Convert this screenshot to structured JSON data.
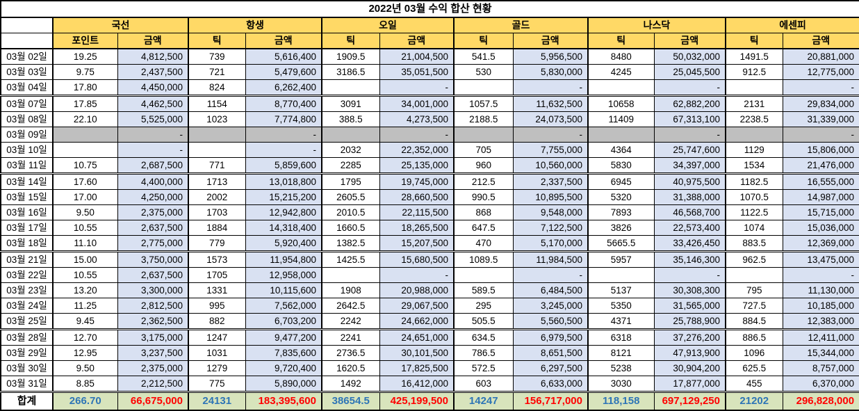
{
  "title": "2022년 03월 수익 합산 현황",
  "columns": {
    "groups": [
      {
        "name": "국선",
        "sub": [
          "포인트",
          "금액"
        ]
      },
      {
        "name": "항생",
        "sub": [
          "틱",
          "금액"
        ]
      },
      {
        "name": "오일",
        "sub": [
          "틱",
          "금액"
        ]
      },
      {
        "name": "골드",
        "sub": [
          "틱",
          "금액"
        ]
      },
      {
        "name": "나스닥",
        "sub": [
          "틱",
          "금액"
        ]
      },
      {
        "name": "에센피",
        "sub": [
          "틱",
          "금액"
        ]
      }
    ]
  },
  "rows": [
    {
      "date": "03월 02일",
      "week_start": false,
      "gray": false,
      "cells": [
        "19.25",
        "4,812,500",
        "739",
        "5,616,400",
        "1909.5",
        "21,004,500",
        "541.5",
        "5,956,500",
        "8480",
        "50,032,000",
        "1491.5",
        "20,881,000"
      ]
    },
    {
      "date": "03월 03일",
      "week_start": false,
      "gray": false,
      "cells": [
        "9.75",
        "2,437,500",
        "721",
        "5,479,600",
        "3186.5",
        "35,051,500",
        "530",
        "5,830,000",
        "4245",
        "25,045,500",
        "912.5",
        "12,775,000"
      ]
    },
    {
      "date": "03월 04일",
      "week_start": false,
      "gray": false,
      "cells": [
        "17.80",
        "4,450,000",
        "824",
        "6,262,400",
        "",
        "-",
        "",
        "-",
        "",
        "-",
        "",
        "-"
      ]
    },
    {
      "date": "03월 07일",
      "week_start": true,
      "gray": false,
      "cells": [
        "17.85",
        "4,462,500",
        "1154",
        "8,770,400",
        "3091",
        "34,001,000",
        "1057.5",
        "11,632,500",
        "10658",
        "62,882,200",
        "2131",
        "29,834,000"
      ]
    },
    {
      "date": "03월 08일",
      "week_start": false,
      "gray": false,
      "cells": [
        "22.10",
        "5,525,000",
        "1023",
        "7,774,800",
        "388.5",
        "4,273,500",
        "2188.5",
        "24,073,500",
        "11409",
        "67,313,100",
        "2238.5",
        "31,339,000"
      ]
    },
    {
      "date": "03월 09일",
      "week_start": false,
      "gray": true,
      "cells": [
        "",
        "-",
        "",
        "-",
        "",
        "-",
        "",
        "-",
        "",
        "-",
        "",
        "-"
      ]
    },
    {
      "date": "03월 10일",
      "week_start": false,
      "gray": false,
      "cells": [
        "",
        "-",
        "",
        "-",
        "2032",
        "22,352,000",
        "705",
        "7,755,000",
        "4364",
        "25,747,600",
        "1129",
        "15,806,000"
      ]
    },
    {
      "date": "03월 11일",
      "week_start": false,
      "gray": false,
      "cells": [
        "10.75",
        "2,687,500",
        "771",
        "5,859,600",
        "2285",
        "25,135,000",
        "960",
        "10,560,000",
        "5830",
        "34,397,000",
        "1534",
        "21,476,000"
      ]
    },
    {
      "date": "03월 14일",
      "week_start": true,
      "gray": false,
      "cells": [
        "17.60",
        "4,400,000",
        "1713",
        "13,018,800",
        "1795",
        "19,745,000",
        "212.5",
        "2,337,500",
        "6945",
        "40,975,500",
        "1182.5",
        "16,555,000"
      ]
    },
    {
      "date": "03월 15일",
      "week_start": false,
      "gray": false,
      "cells": [
        "17.00",
        "4,250,000",
        "2002",
        "15,215,200",
        "2605.5",
        "28,660,500",
        "990.5",
        "10,895,500",
        "5320",
        "31,388,000",
        "1070.5",
        "14,987,000"
      ]
    },
    {
      "date": "03월 16일",
      "week_start": false,
      "gray": false,
      "cells": [
        "9.50",
        "2,375,000",
        "1703",
        "12,942,800",
        "2010.5",
        "22,115,500",
        "868",
        "9,548,000",
        "7893",
        "46,568,700",
        "1122.5",
        "15,715,000"
      ]
    },
    {
      "date": "03월 17일",
      "week_start": false,
      "gray": false,
      "cells": [
        "10.55",
        "2,637,500",
        "1884",
        "14,318,400",
        "1660.5",
        "18,265,500",
        "647.5",
        "7,122,500",
        "3826",
        "22,573,400",
        "1074",
        "15,036,000"
      ]
    },
    {
      "date": "03월 18일",
      "week_start": false,
      "gray": false,
      "cells": [
        "11.10",
        "2,775,000",
        "779",
        "5,920,400",
        "1382.5",
        "15,207,500",
        "470",
        "5,170,000",
        "5665.5",
        "33,426,450",
        "883.5",
        "12,369,000"
      ]
    },
    {
      "date": "03월 21일",
      "week_start": true,
      "gray": false,
      "cells": [
        "15.00",
        "3,750,000",
        "1573",
        "11,954,800",
        "1425.5",
        "15,680,500",
        "1089.5",
        "11,984,500",
        "5957",
        "35,146,300",
        "962.5",
        "13,475,000"
      ]
    },
    {
      "date": "03월 22일",
      "week_start": false,
      "gray": false,
      "cells": [
        "10.55",
        "2,637,500",
        "1705",
        "12,958,000",
        "",
        "-",
        "",
        "-",
        "",
        "-",
        "",
        "-"
      ]
    },
    {
      "date": "03월 23일",
      "week_start": false,
      "gray": false,
      "cells": [
        "13.20",
        "3,300,000",
        "1331",
        "10,115,600",
        "1908",
        "20,988,000",
        "589.5",
        "6,484,500",
        "5137",
        "30,308,300",
        "795",
        "11,130,000"
      ]
    },
    {
      "date": "03월 24일",
      "week_start": false,
      "gray": false,
      "cells": [
        "11.25",
        "2,812,500",
        "995",
        "7,562,000",
        "2642.5",
        "29,067,500",
        "295",
        "3,245,000",
        "5350",
        "31,565,000",
        "727.5",
        "10,185,000"
      ]
    },
    {
      "date": "03월 25일",
      "week_start": false,
      "gray": false,
      "cells": [
        "9.45",
        "2,362,500",
        "882",
        "6,703,200",
        "2242",
        "24,662,000",
        "505.5",
        "5,560,500",
        "4371",
        "25,788,900",
        "884.5",
        "12,383,000"
      ]
    },
    {
      "date": "03월 28일",
      "week_start": true,
      "gray": false,
      "cells": [
        "12.70",
        "3,175,000",
        "1247",
        "9,477,200",
        "2241",
        "24,651,000",
        "634.5",
        "6,979,500",
        "6318",
        "37,276,200",
        "886.5",
        "12,411,000"
      ]
    },
    {
      "date": "03월 29일",
      "week_start": false,
      "gray": false,
      "cells": [
        "12.95",
        "3,237,500",
        "1031",
        "7,835,600",
        "2736.5",
        "30,101,500",
        "786.5",
        "8,651,500",
        "8121",
        "47,913,900",
        "1096",
        "15,344,000"
      ]
    },
    {
      "date": "03월 30일",
      "week_start": false,
      "gray": false,
      "cells": [
        "9.50",
        "2,375,000",
        "1279",
        "9,720,400",
        "1620.5",
        "17,825,500",
        "572.5",
        "6,297,500",
        "5238",
        "30,904,200",
        "625.5",
        "8,757,000"
      ]
    },
    {
      "date": "03월 31일",
      "week_start": false,
      "gray": false,
      "cells": [
        "8.85",
        "2,212,500",
        "775",
        "5,890,000",
        "1492",
        "16,412,000",
        "603",
        "6,633,000",
        "3030",
        "17,877,000",
        "455",
        "6,370,000"
      ]
    }
  ],
  "total_row": {
    "label": "합계",
    "cells": [
      "266.70",
      "66,675,000",
      "24131",
      "183,395,600",
      "38654.5",
      "425,199,500",
      "14247",
      "156,717,000",
      "118,158",
      "697,129,250",
      "21202",
      "296,828,000"
    ]
  },
  "colors": {
    "header_fill": "#FFD966",
    "amount_fill": "#D9E1F2",
    "gray_fill": "#BFBFBF",
    "total_fill": "#D8E4BC",
    "total_tick_text": "#2E75B6",
    "total_amount_text": "#FF0000",
    "border": "#000000"
  }
}
